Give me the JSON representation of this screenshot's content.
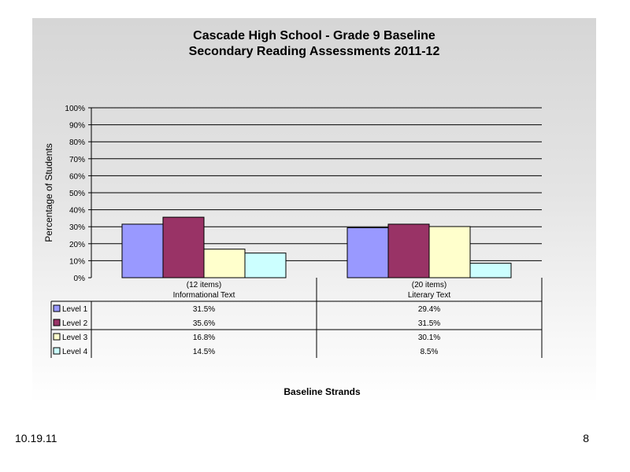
{
  "footer": {
    "date": "10.19.11",
    "page": "8"
  },
  "chart_data": {
    "type": "bar",
    "title": "Cascade High School - Grade 9 Baseline",
    "subtitle": "Secondary Reading Assessments 2011-12",
    "xlabel": "Baseline Strands",
    "ylabel": "Percentage of Students",
    "ylim": [
      0,
      100
    ],
    "yticks": [
      "0%",
      "10%",
      "20%",
      "30%",
      "40%",
      "50%",
      "60%",
      "70%",
      "80%",
      "90%",
      "100%"
    ],
    "grid": true,
    "categories": [
      {
        "line1": "(12 items)",
        "line2": "Informational Text"
      },
      {
        "line1": "(20 items)",
        "line2": "Literary Text"
      }
    ],
    "series": [
      {
        "name": "Level 1",
        "color": "#9999ff",
        "values": [
          31.5,
          29.4
        ],
        "labels": [
          "31.5%",
          "29.4%"
        ]
      },
      {
        "name": "Level 2",
        "color": "#993366",
        "values": [
          35.6,
          31.5
        ],
        "labels": [
          "35.6%",
          "31.5%"
        ]
      },
      {
        "name": "Level 3",
        "color": "#ffffcc",
        "values": [
          16.8,
          30.1
        ],
        "labels": [
          "16.8%",
          "30.1%"
        ]
      },
      {
        "name": "Level 4",
        "color": "#ccffff",
        "values": [
          14.5,
          8.5
        ],
        "labels": [
          "14.5%",
          "8.5%"
        ]
      }
    ],
    "legend": "data-table"
  }
}
